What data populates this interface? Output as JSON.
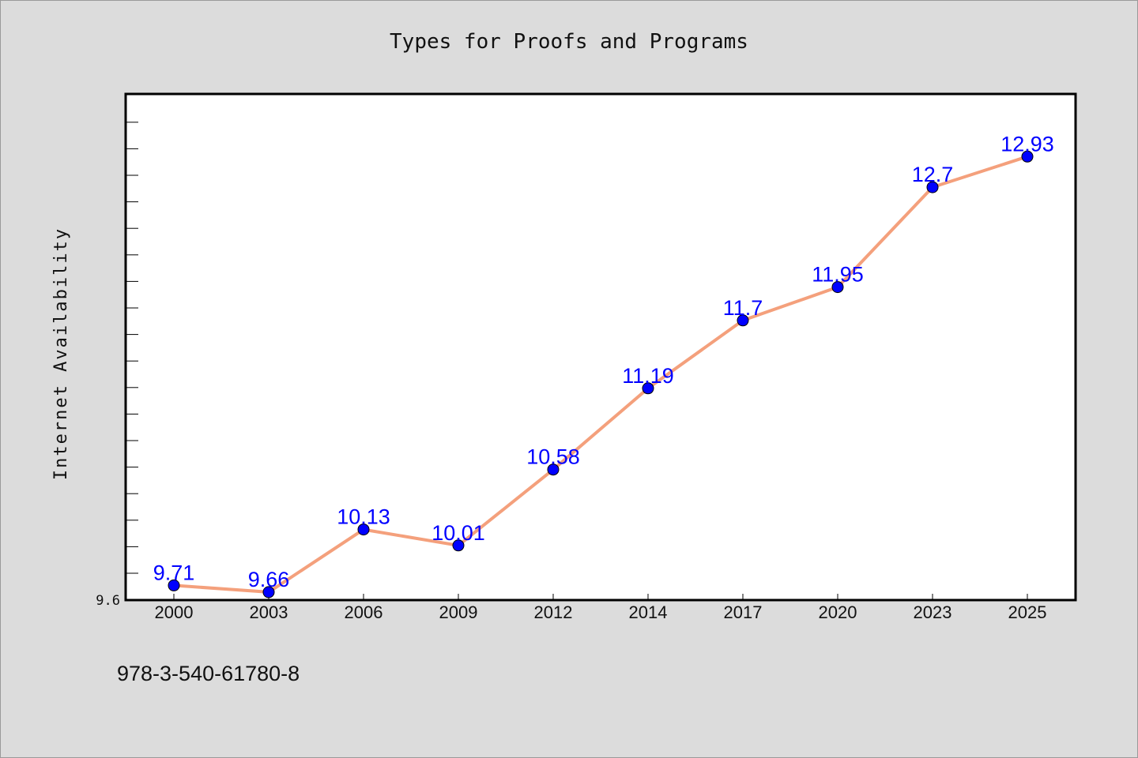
{
  "chart_data": {
    "type": "line",
    "title": "Types for Proofs and Programs",
    "xlabel": "",
    "ylabel": "Internet Availability",
    "categories": [
      "2000",
      "2003",
      "2006",
      "2009",
      "2012",
      "2014",
      "2017",
      "2020",
      "2023",
      "2025"
    ],
    "series": [
      {
        "values": [
          9.71,
          9.66,
          10.13,
          10.01,
          10.58,
          11.19,
          11.7,
          11.95,
          12.7,
          12.93
        ],
        "labels": [
          "9.71",
          "9.66",
          "10.13",
          "10.01",
          "10.58",
          "11.19",
          "11.7",
          "11.95",
          "12.7",
          "12.93"
        ],
        "line_color": "#f4a07c",
        "marker_color": "#0000ff"
      }
    ],
    "ylim": [
      9.6,
      13.4
    ],
    "y_tick_labels": [
      "9.6"
    ],
    "grid": false,
    "legend": "none"
  },
  "footer": {
    "isbn": "978-3-540-61780-8"
  },
  "colors": {
    "background": "#dcdcdc",
    "plot_background": "#ffffff",
    "axis": "#000000"
  }
}
